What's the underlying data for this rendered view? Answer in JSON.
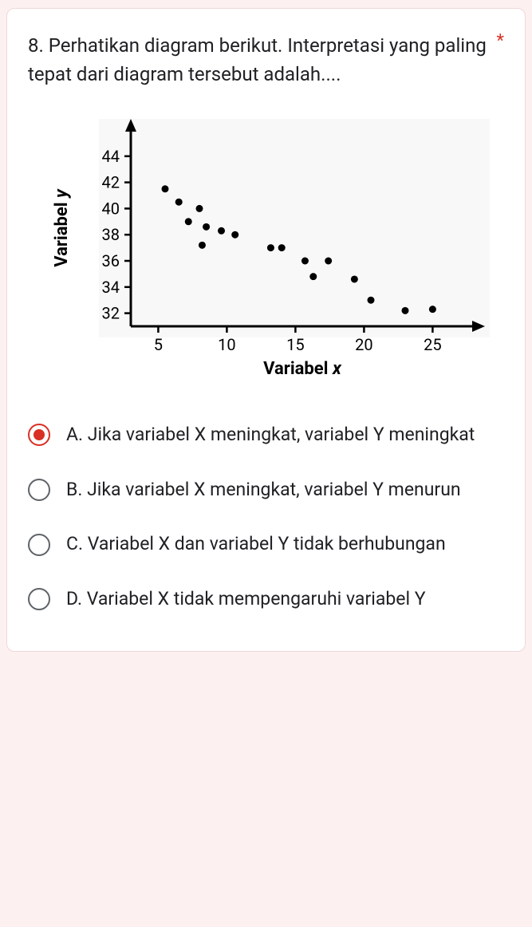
{
  "question": {
    "text": "8. Perhatikan diagram berikut. Interpretasi yang paling tepat dari diagram tersebut adalah....",
    "required_mark": "*"
  },
  "chart": {
    "type": "scatter",
    "xlabel": "Variabel x",
    "ylabel": "Variabel y",
    "xlim": [
      3,
      28
    ],
    "ylim": [
      31,
      46
    ],
    "xticks": [
      5,
      10,
      15,
      20,
      25
    ],
    "yticks": [
      32,
      34,
      36,
      38,
      40,
      42,
      44
    ],
    "axis_color": "#000000",
    "point_color": "#000000",
    "background_color": "#ececec",
    "marker_radius": 4.5,
    "label_fontsize": 22,
    "tick_fontsize": 20,
    "points": [
      {
        "x": 5.5,
        "y": 41.5
      },
      {
        "x": 6.5,
        "y": 40.5
      },
      {
        "x": 7.2,
        "y": 39.0
      },
      {
        "x": 8.0,
        "y": 40.0
      },
      {
        "x": 8.5,
        "y": 38.6
      },
      {
        "x": 9.6,
        "y": 38.3
      },
      {
        "x": 10.6,
        "y": 38.0
      },
      {
        "x": 8.2,
        "y": 37.2
      },
      {
        "x": 13.2,
        "y": 37.0
      },
      {
        "x": 14.0,
        "y": 37.0
      },
      {
        "x": 15.7,
        "y": 36.0
      },
      {
        "x": 17.4,
        "y": 36.0
      },
      {
        "x": 16.3,
        "y": 34.8
      },
      {
        "x": 19.3,
        "y": 34.6
      },
      {
        "x": 20.5,
        "y": 33.0
      },
      {
        "x": 23.0,
        "y": 32.2
      },
      {
        "x": 25.0,
        "y": 32.3
      }
    ]
  },
  "options": [
    {
      "id": "A",
      "text": "A. Jika variabel X meningkat, variabel Y meningkat",
      "selected": true
    },
    {
      "id": "B",
      "text": "B. Jika variabel X meningkat, variabel Y menurun",
      "selected": false
    },
    {
      "id": "C",
      "text": "C. Variabel X dan variabel Y tidak berhubungan",
      "selected": false
    },
    {
      "id": "D",
      "text": "D. Variabel X tidak mempengaruhi variabel Y",
      "selected": false
    }
  ],
  "colors": {
    "accent": "#d93025",
    "page_bg": "#fdf0f1",
    "card_bg": "#ffffff",
    "text": "#202124",
    "radio_border": "#5f6368"
  }
}
